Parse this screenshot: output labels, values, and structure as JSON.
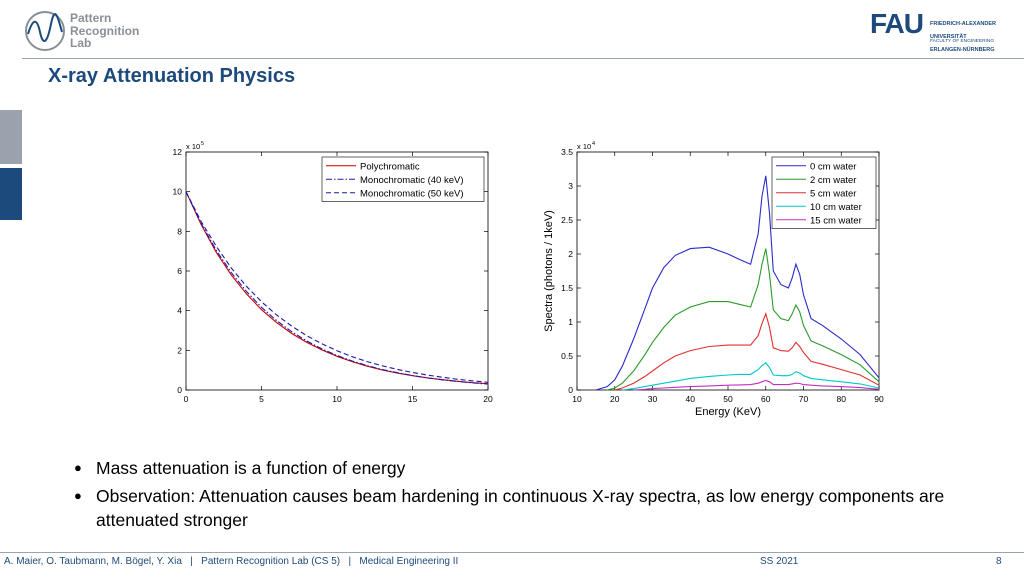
{
  "logo": {
    "left_lines": [
      "Pattern",
      "Recognition",
      "Lab"
    ],
    "right_mark": "FAU",
    "right_lines": [
      "FRIEDRICH-ALEXANDER",
      "UNIVERSITÄT",
      "ERLANGEN-NÜRNBERG"
    ],
    "right_faculty": "FACULTY OF ENGINEERING"
  },
  "title": "X-ray Attenuation Physics",
  "chart_data": [
    {
      "type": "line",
      "multiplier_label": "x 10",
      "multiplier_exp": "5",
      "xlim": [
        0,
        20
      ],
      "ylim": [
        0,
        12
      ],
      "x_ticks": [
        "0",
        "5",
        "10",
        "15",
        "20"
      ],
      "y_ticks": [
        "0",
        "2",
        "4",
        "6",
        "8",
        "10",
        "12"
      ],
      "legend_position": "top-right",
      "series": [
        {
          "name": "Polychromatic",
          "color": "#cc0000",
          "style": "solid",
          "x": [
            0,
            1,
            2,
            3,
            4,
            5,
            6,
            7,
            8,
            9,
            10,
            11,
            12,
            13,
            14,
            15,
            16,
            17,
            18,
            19,
            20
          ],
          "y": [
            10.0,
            8.35,
            6.95,
            5.8,
            4.85,
            4.05,
            3.4,
            2.85,
            2.4,
            2.02,
            1.7,
            1.43,
            1.2,
            1.01,
            0.85,
            0.72,
            0.61,
            0.52,
            0.44,
            0.37,
            0.32
          ]
        },
        {
          "name": "Monochromatic (40 keV)",
          "color": "#1a1aa6",
          "style": "dashdot",
          "x": [
            0,
            1,
            2,
            3,
            4,
            5,
            6,
            7,
            8,
            9,
            10,
            11,
            12,
            13,
            14,
            15,
            16,
            17,
            18,
            19,
            20
          ],
          "y": [
            10.0,
            8.4,
            7.05,
            5.92,
            4.97,
            4.17,
            3.5,
            2.94,
            2.47,
            2.07,
            1.74,
            1.46,
            1.23,
            1.03,
            0.87,
            0.73,
            0.61,
            0.51,
            0.43,
            0.36,
            0.3
          ]
        },
        {
          "name": "Monochromatic (50 keV)",
          "color": "#1a1aa6",
          "style": "dashed",
          "x": [
            0,
            1,
            2,
            3,
            4,
            5,
            6,
            7,
            8,
            9,
            10,
            11,
            12,
            13,
            14,
            15,
            16,
            17,
            18,
            19,
            20
          ],
          "y": [
            10.0,
            8.5,
            7.25,
            6.15,
            5.23,
            4.45,
            3.78,
            3.22,
            2.74,
            2.33,
            1.98,
            1.68,
            1.43,
            1.22,
            1.04,
            0.88,
            0.75,
            0.64,
            0.54,
            0.46,
            0.39
          ]
        }
      ]
    },
    {
      "type": "line",
      "multiplier_label": "x 10",
      "multiplier_exp": "4",
      "xlabel": "Energy (KeV)",
      "ylabel": "Spectra (photons / 1keV)",
      "xlim": [
        10,
        90
      ],
      "ylim": [
        0,
        3.5
      ],
      "x_ticks": [
        "10",
        "20",
        "30",
        "40",
        "50",
        "60",
        "70",
        "80",
        "90"
      ],
      "y_ticks": [
        "0",
        "0.5",
        "1",
        "1.5",
        "2",
        "2.5",
        "3",
        "3.5"
      ],
      "legend_position": "top-right",
      "series": [
        {
          "name": "0 cm water",
          "color": "#2b2bcc",
          "x": [
            15,
            18,
            20,
            22,
            25,
            28,
            30,
            33,
            36,
            40,
            45,
            50,
            53,
            56,
            58,
            59,
            60,
            61,
            62,
            64,
            66,
            67,
            68,
            69,
            70,
            72,
            75,
            80,
            85,
            90
          ],
          "y": [
            0.0,
            0.05,
            0.15,
            0.35,
            0.75,
            1.2,
            1.5,
            1.8,
            1.98,
            2.08,
            2.1,
            2.0,
            1.92,
            1.85,
            2.3,
            2.85,
            3.15,
            2.6,
            1.75,
            1.55,
            1.5,
            1.65,
            1.85,
            1.7,
            1.4,
            1.05,
            0.95,
            0.75,
            0.52,
            0.18
          ]
        },
        {
          "name": "2 cm water",
          "color": "#2a9a2a",
          "x": [
            18,
            20,
            22,
            25,
            28,
            30,
            33,
            36,
            40,
            45,
            50,
            53,
            56,
            58,
            59,
            60,
            61,
            62,
            64,
            66,
            67,
            68,
            69,
            70,
            72,
            75,
            80,
            85,
            90
          ],
          "y": [
            0.0,
            0.03,
            0.1,
            0.28,
            0.52,
            0.7,
            0.92,
            1.1,
            1.22,
            1.3,
            1.3,
            1.26,
            1.22,
            1.55,
            1.85,
            2.08,
            1.7,
            1.18,
            1.05,
            1.02,
            1.12,
            1.25,
            1.15,
            0.95,
            0.72,
            0.65,
            0.52,
            0.37,
            0.12
          ]
        },
        {
          "name": "5 cm water",
          "color": "#e03030",
          "x": [
            20,
            22,
            25,
            28,
            30,
            33,
            36,
            40,
            45,
            50,
            53,
            56,
            58,
            59,
            60,
            61,
            62,
            64,
            66,
            67,
            68,
            69,
            70,
            72,
            75,
            80,
            85,
            90
          ],
          "y": [
            0.0,
            0.03,
            0.1,
            0.2,
            0.28,
            0.4,
            0.5,
            0.58,
            0.64,
            0.66,
            0.66,
            0.66,
            0.8,
            0.98,
            1.12,
            0.92,
            0.62,
            0.58,
            0.57,
            0.62,
            0.7,
            0.64,
            0.55,
            0.42,
            0.38,
            0.3,
            0.22,
            0.07
          ]
        },
        {
          "name": "10 cm water",
          "color": "#00c8c8",
          "x": [
            22,
            25,
            28,
            30,
            33,
            36,
            40,
            45,
            50,
            53,
            56,
            58,
            59,
            60,
            61,
            62,
            64,
            66,
            67,
            68,
            69,
            70,
            72,
            75,
            80,
            85,
            90
          ],
          "y": [
            0.0,
            0.02,
            0.05,
            0.07,
            0.1,
            0.13,
            0.17,
            0.2,
            0.22,
            0.23,
            0.23,
            0.3,
            0.36,
            0.4,
            0.33,
            0.22,
            0.21,
            0.21,
            0.23,
            0.27,
            0.25,
            0.21,
            0.17,
            0.15,
            0.12,
            0.09,
            0.03
          ]
        },
        {
          "name": "15 cm water",
          "color": "#c030c0",
          "x": [
            25,
            28,
            30,
            33,
            36,
            40,
            45,
            50,
            53,
            56,
            58,
            59,
            60,
            61,
            62,
            64,
            66,
            67,
            68,
            69,
            70,
            72,
            75,
            80,
            85,
            90
          ],
          "y": [
            0.0,
            0.01,
            0.02,
            0.03,
            0.04,
            0.05,
            0.06,
            0.07,
            0.075,
            0.08,
            0.1,
            0.12,
            0.14,
            0.12,
            0.08,
            0.08,
            0.08,
            0.09,
            0.1,
            0.095,
            0.08,
            0.07,
            0.06,
            0.05,
            0.035,
            0.01
          ]
        }
      ]
    }
  ],
  "bullets": [
    "Mass attenuation is a function of energy",
    "Observation: Attenuation causes beam hardening in continuous X-ray spectra, as low energy components are attenuated stronger"
  ],
  "footer": {
    "authors": "A. Maier, O. Taubmann, M. Bögel, Y. Xia   |   Pattern Recognition Lab (CS 5)   |   Medical Engineering II",
    "term": "SS 2021",
    "page": "8"
  }
}
